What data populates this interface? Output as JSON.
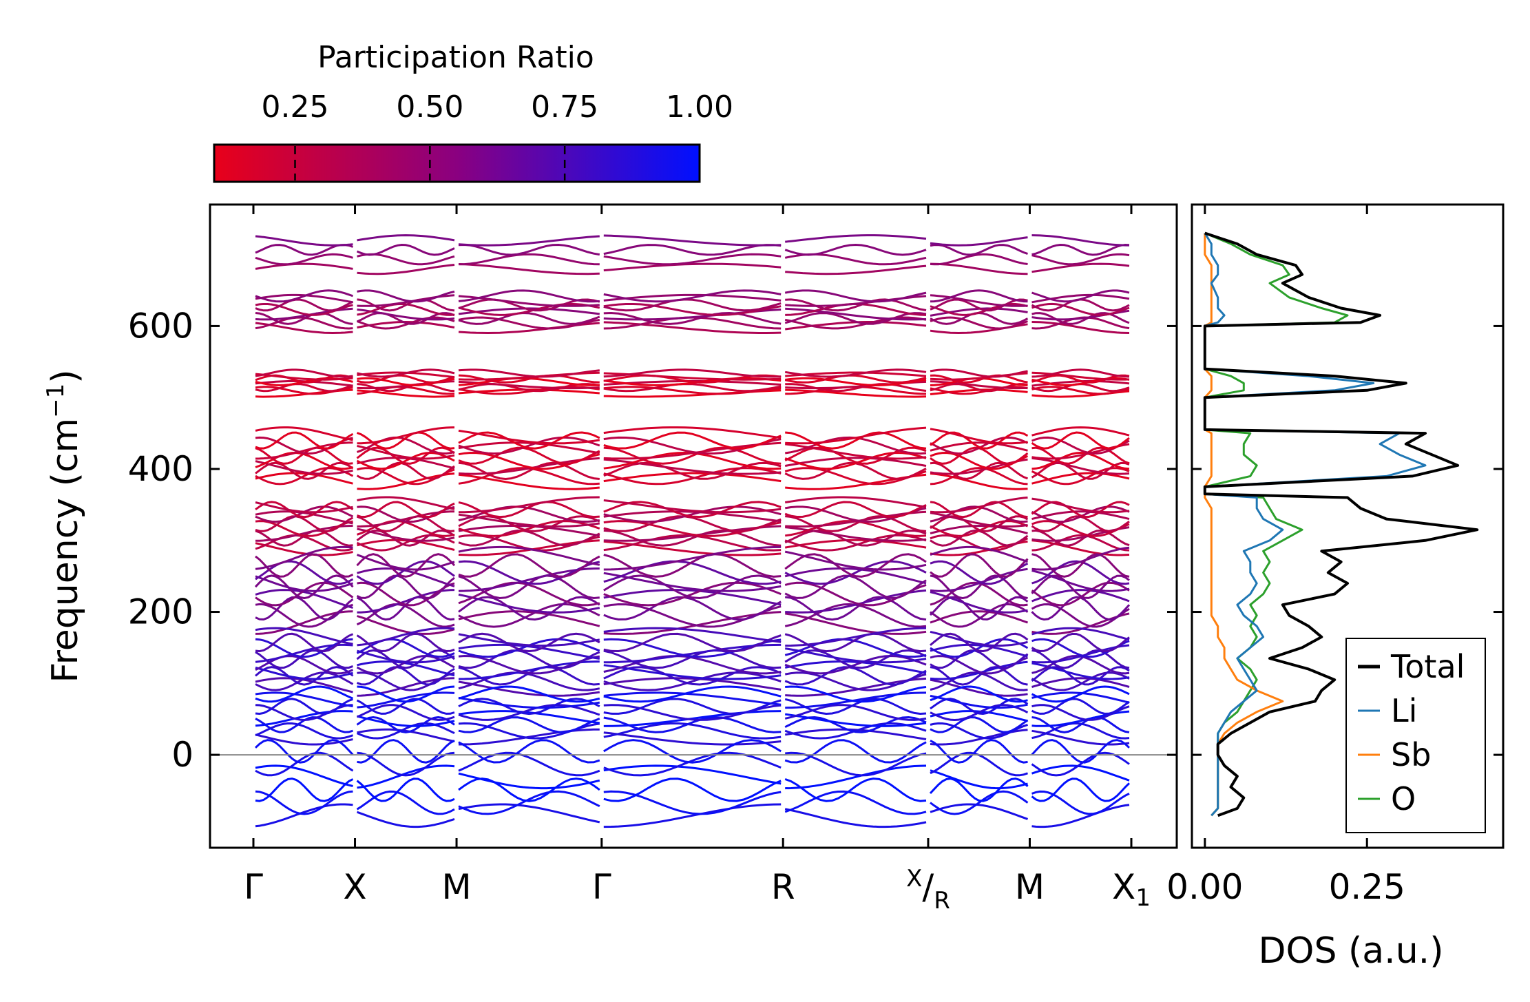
{
  "chart_data": [
    {
      "type": "line",
      "role": "phonon-dispersion",
      "ylabel_main": "Frequency (cm",
      "ylabel_sup": "−1",
      "ylabel_close": ")",
      "ylim": [
        -130,
        770
      ],
      "yticks": [
        0,
        200,
        400,
        600
      ],
      "zero_line": true,
      "path_labels": [
        {
          "main": "Γ",
          "sub": ""
        },
        {
          "main": "X",
          "sub": ""
        },
        {
          "main": "M",
          "sub": ""
        },
        {
          "main": "Γ",
          "sub": ""
        },
        {
          "main": "R",
          "sub": ""
        },
        {
          "main": "X",
          "sub": "R",
          "slashed": true
        },
        {
          "main": "M",
          "sub": ""
        },
        {
          "main": "X",
          "sub": "1"
        }
      ],
      "path_positions": [
        0,
        0.7,
        1.4,
        2.4,
        3.65,
        4.65,
        5.35,
        6.05
      ],
      "colorbar": {
        "title": "Participation Ratio",
        "range": [
          0.1,
          1.0
        ],
        "ticks": [
          0.25,
          0.5,
          0.75,
          1.0
        ],
        "tick_labels": [
          "0.25",
          "0.50",
          "0.75",
          "1.00"
        ],
        "color_low": "#e8001a",
        "color_high": "#0010ff"
      },
      "band_groups": [
        {
          "center": 700,
          "count": 4,
          "spread": 20,
          "pr": 0.45
        },
        {
          "center": 620,
          "count": 8,
          "spread": 22,
          "pr": 0.4
        },
        {
          "center": 520,
          "count": 8,
          "spread": 14,
          "pr": 0.18
        },
        {
          "center": 415,
          "count": 10,
          "spread": 32,
          "pr": 0.2
        },
        {
          "center": 320,
          "count": 10,
          "spread": 30,
          "pr": 0.3
        },
        {
          "center": 230,
          "count": 10,
          "spread": 45,
          "pr": 0.55
        },
        {
          "center": 130,
          "count": 10,
          "spread": 35,
          "pr": 0.75
        },
        {
          "center": 55,
          "count": 8,
          "spread": 30,
          "pr": 0.9
        },
        {
          "center": -40,
          "count": 6,
          "spread": 45,
          "pr": 0.98
        }
      ]
    },
    {
      "type": "line",
      "role": "density-of-states",
      "xlabel": "DOS (a.u.)",
      "xlim": [
        -0.02,
        0.46
      ],
      "xticks": [
        0.0,
        0.25
      ],
      "xtick_labels": [
        "0.00",
        "0.25"
      ],
      "ylim": [
        -130,
        770
      ],
      "series": [
        {
          "name": "Total",
          "color": "#000000"
        },
        {
          "name": "Li",
          "color": "#1f77b4"
        },
        {
          "name": "Sb",
          "color": "#ff7f0e"
        },
        {
          "name": "O",
          "color": "#2ca02c"
        }
      ],
      "freq": [
        -85,
        -75,
        -60,
        -45,
        -30,
        -15,
        0,
        15,
        30,
        45,
        60,
        75,
        90,
        105,
        120,
        135,
        150,
        165,
        180,
        195,
        210,
        225,
        240,
        255,
        270,
        285,
        300,
        315,
        330,
        345,
        360,
        365,
        375,
        390,
        405,
        420,
        435,
        450,
        455,
        500,
        510,
        520,
        530,
        540,
        600,
        605,
        615,
        625,
        640,
        660,
        672,
        685,
        700,
        715,
        730
      ],
      "total": [
        0.02,
        0.05,
        0.06,
        0.04,
        0.05,
        0.03,
        0.02,
        0.02,
        0.04,
        0.07,
        0.1,
        0.17,
        0.18,
        0.2,
        0.16,
        0.1,
        0.15,
        0.18,
        0.16,
        0.13,
        0.12,
        0.2,
        0.22,
        0.19,
        0.21,
        0.18,
        0.34,
        0.42,
        0.28,
        0.24,
        0.22,
        0.0,
        0.0,
        0.32,
        0.39,
        0.35,
        0.31,
        0.34,
        0.0,
        0.0,
        0.25,
        0.31,
        0.2,
        0.0,
        0.0,
        0.24,
        0.27,
        0.21,
        0.16,
        0.12,
        0.15,
        0.14,
        0.08,
        0.05,
        0.0
      ],
      "li": [
        0.01,
        0.02,
        0.02,
        0.02,
        0.02,
        0.02,
        0.02,
        0.02,
        0.02,
        0.03,
        0.04,
        0.06,
        0.08,
        0.07,
        0.06,
        0.05,
        0.07,
        0.09,
        0.08,
        0.06,
        0.05,
        0.07,
        0.08,
        0.07,
        0.07,
        0.06,
        0.1,
        0.12,
        0.09,
        0.08,
        0.08,
        0.0,
        0.0,
        0.28,
        0.34,
        0.3,
        0.27,
        0.3,
        0.0,
        0.0,
        0.2,
        0.26,
        0.16,
        0.0,
        0.0,
        0.02,
        0.03,
        0.02,
        0.02,
        0.01,
        0.02,
        0.02,
        0.01,
        0.01,
        0.0
      ],
      "sb": [
        0.01,
        0.02,
        0.02,
        0.02,
        0.02,
        0.02,
        0.02,
        0.02,
        0.03,
        0.05,
        0.08,
        0.12,
        0.08,
        0.05,
        0.04,
        0.03,
        0.03,
        0.02,
        0.02,
        0.01,
        0.01,
        0.01,
        0.01,
        0.01,
        0.01,
        0.01,
        0.01,
        0.01,
        0.01,
        0.01,
        0.0,
        0.0,
        0.0,
        0.01,
        0.01,
        0.01,
        0.01,
        0.01,
        0.0,
        0.0,
        0.01,
        0.01,
        0.01,
        0.0,
        0.0,
        0.01,
        0.01,
        0.01,
        0.01,
        0.01,
        0.01,
        0.01,
        0.0,
        0.0,
        0.0
      ],
      "o": [
        0.01,
        0.02,
        0.02,
        0.02,
        0.02,
        0.02,
        0.02,
        0.02,
        0.02,
        0.03,
        0.05,
        0.06,
        0.07,
        0.08,
        0.07,
        0.05,
        0.07,
        0.08,
        0.07,
        0.08,
        0.07,
        0.09,
        0.1,
        0.09,
        0.1,
        0.09,
        0.12,
        0.15,
        0.11,
        0.1,
        0.09,
        0.0,
        0.0,
        0.07,
        0.08,
        0.06,
        0.06,
        0.07,
        0.0,
        0.0,
        0.06,
        0.06,
        0.04,
        0.0,
        0.0,
        0.2,
        0.22,
        0.18,
        0.13,
        0.1,
        0.13,
        0.12,
        0.07,
        0.04,
        0.0
      ]
    }
  ]
}
